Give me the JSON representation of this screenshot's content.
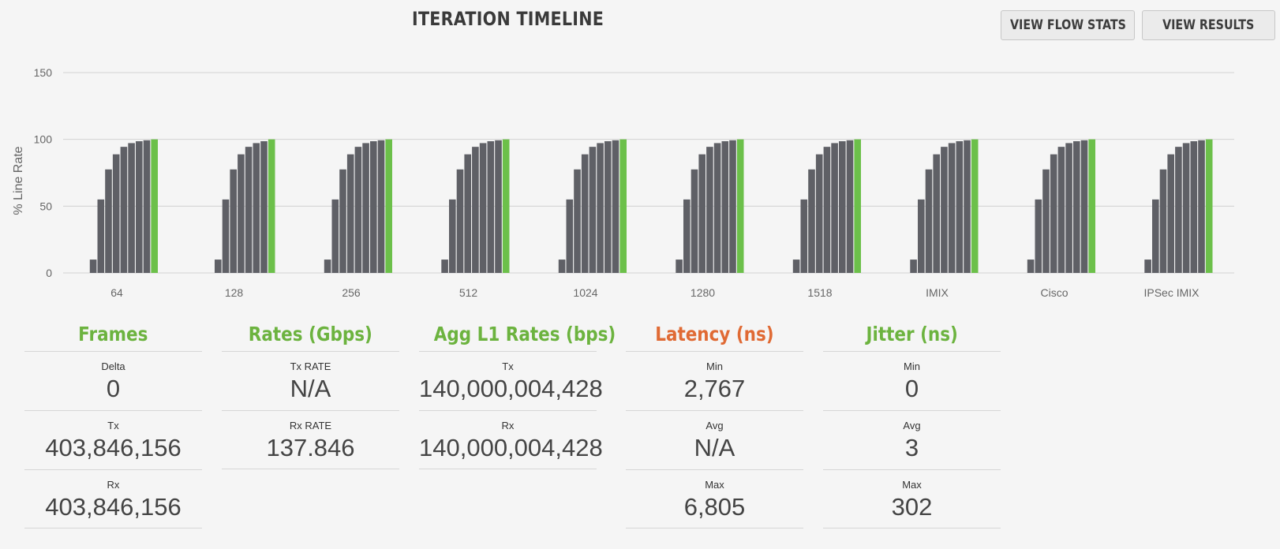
{
  "header": {
    "title": "ITERATION TIMELINE",
    "buttons": {
      "flow_stats": "VIEW FLOW STATS",
      "results": "VIEW RESULTS"
    }
  },
  "colors": {
    "bar": "#5f6066",
    "final_bar": "#6cc04a",
    "frames_header": "#6cb33f",
    "latency_header": "#e06a34"
  },
  "chart_data": {
    "type": "bar",
    "ylabel": "% Line Rate",
    "ylim": [
      0,
      150
    ],
    "yticks": [
      0,
      50,
      100,
      150
    ],
    "grid": true,
    "categories": [
      "64",
      "128",
      "256",
      "512",
      "1024",
      "1280",
      "1518",
      "IMIX",
      "Cisco",
      "IPSec IMIX"
    ],
    "groups": [
      {
        "category": "64",
        "iterations": [
          10,
          55,
          77.5,
          88.8,
          94.4,
          97.2,
          98.6,
          99.3,
          100
        ]
      },
      {
        "category": "128",
        "iterations": [
          10,
          55,
          77.5,
          88.8,
          94.4,
          97.2,
          98.6,
          100
        ]
      },
      {
        "category": "256",
        "iterations": [
          10,
          55,
          77.5,
          88.8,
          94.4,
          97.2,
          98.6,
          99.3,
          100
        ]
      },
      {
        "category": "512",
        "iterations": [
          10,
          55,
          77.5,
          88.8,
          94.4,
          97.2,
          98.6,
          99.3,
          100
        ]
      },
      {
        "category": "1024",
        "iterations": [
          10,
          55,
          77.5,
          88.8,
          94.4,
          97.2,
          98.6,
          99.3,
          100
        ]
      },
      {
        "category": "1280",
        "iterations": [
          10,
          55,
          77.5,
          88.8,
          94.4,
          97.2,
          98.6,
          99.3,
          100
        ]
      },
      {
        "category": "1518",
        "iterations": [
          10,
          55,
          77.5,
          88.8,
          94.4,
          97.2,
          98.6,
          99.3,
          100
        ]
      },
      {
        "category": "IMIX",
        "iterations": [
          10,
          55,
          77.5,
          88.8,
          94.4,
          97.2,
          98.6,
          99.3,
          100
        ]
      },
      {
        "category": "Cisco",
        "iterations": [
          10,
          55,
          77.5,
          88.8,
          94.4,
          97.2,
          98.6,
          99.3,
          100
        ]
      },
      {
        "category": "IPSec IMIX",
        "iterations": [
          10,
          55,
          77.5,
          88.8,
          94.4,
          97.2,
          98.6,
          99.3,
          100
        ]
      }
    ]
  },
  "stats": [
    {
      "header": "Frames",
      "cells": [
        {
          "label": "Delta",
          "value": "0"
        },
        {
          "label": "Tx",
          "value": "403,846,156"
        },
        {
          "label": "Rx",
          "value": "403,846,156"
        }
      ]
    },
    {
      "header": "Rates (Gbps)",
      "cells": [
        {
          "label": "Tx RATE",
          "value": "N/A"
        },
        {
          "label": "Rx RATE",
          "value": "137.846"
        }
      ]
    },
    {
      "header": "Agg L1 Rates (bps)",
      "cells": [
        {
          "label": "Tx",
          "value": "140,000,004,428"
        },
        {
          "label": "Rx",
          "value": "140,000,004,428"
        }
      ]
    },
    {
      "header": "Latency (ns)",
      "cells": [
        {
          "label": "Min",
          "value": "2,767"
        },
        {
          "label": "Avg",
          "value": "N/A"
        },
        {
          "label": "Max",
          "value": "6,805"
        }
      ]
    },
    {
      "header": "Jitter (ns)",
      "cells": [
        {
          "label": "Min",
          "value": "0"
        },
        {
          "label": "Avg",
          "value": "3"
        },
        {
          "label": "Max",
          "value": "302"
        }
      ]
    }
  ]
}
